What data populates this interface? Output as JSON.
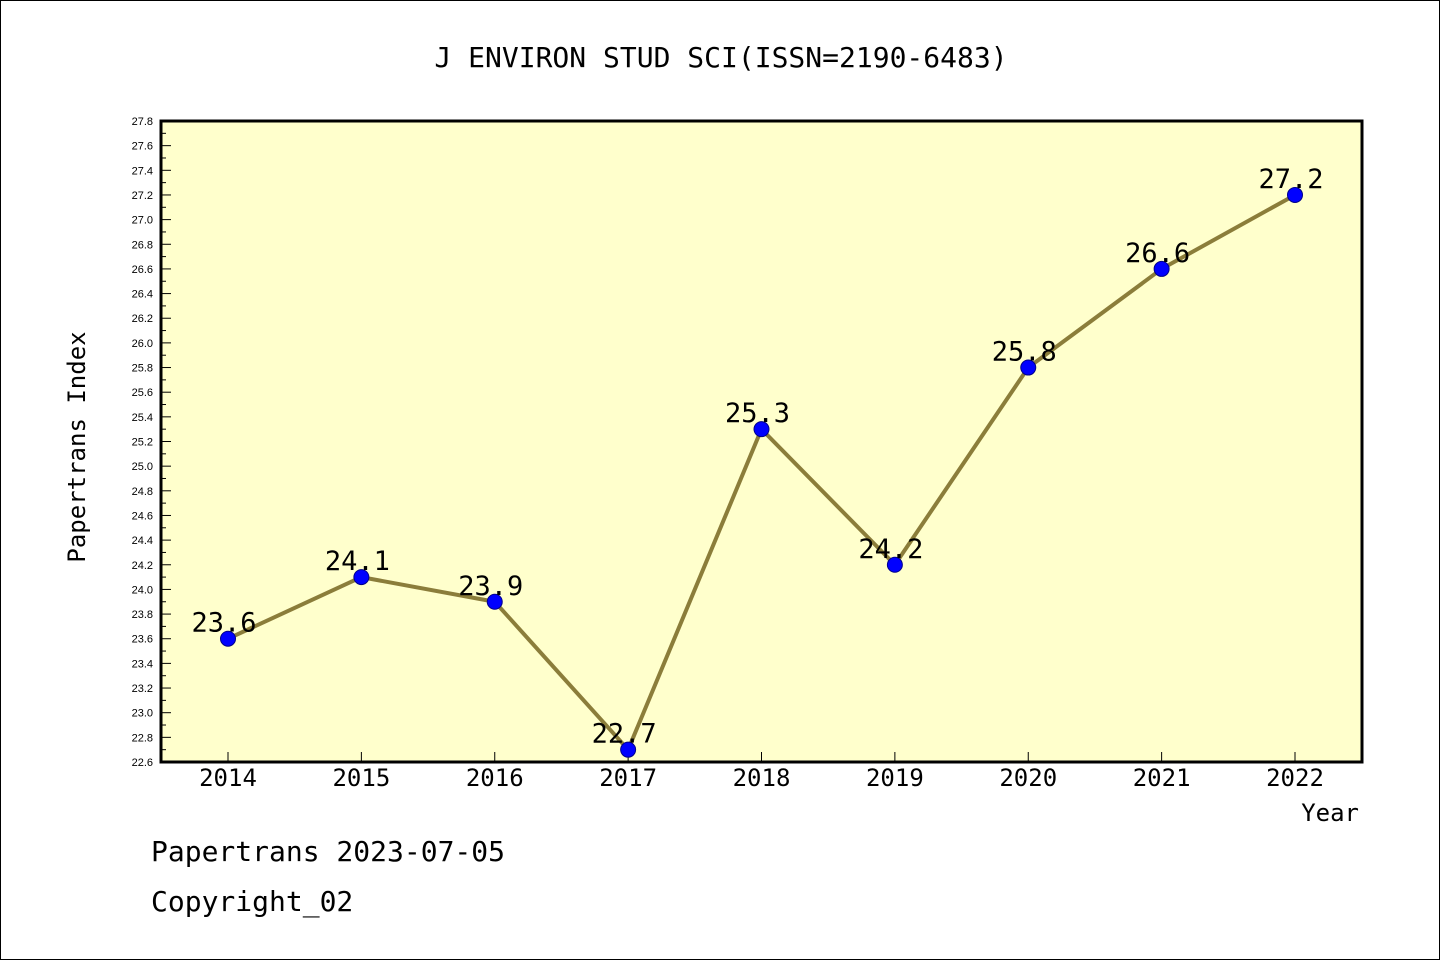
{
  "chart_data": {
    "type": "line",
    "title": "J ENVIRON STUD SCI(ISSN=2190-6483)",
    "xlabel": "Year",
    "ylabel": "Papertrans Index",
    "categories": [
      "2014",
      "2015",
      "2016",
      "2017",
      "2018",
      "2019",
      "2020",
      "2021",
      "2022"
    ],
    "series": [
      {
        "values": [
          23.6,
          24.1,
          23.9,
          22.7,
          25.3,
          24.2,
          25.8,
          26.6,
          27.2
        ]
      }
    ],
    "data_labels": [
      "23.6",
      "24.1",
      "23.9",
      "22.7",
      "25.3",
      "24.2",
      "25.8",
      "26.6",
      "27.2"
    ],
    "ylim": [
      22.6,
      27.8
    ],
    "y_ticks": [
      "22.6",
      "22.8",
      "23.0",
      "23.2",
      "23.4",
      "23.6",
      "23.8",
      "24.0",
      "24.2",
      "24.4",
      "24.6",
      "24.8",
      "25.0",
      "25.2",
      "25.4",
      "25.6",
      "25.8",
      "26.0",
      "26.2",
      "26.4",
      "26.6",
      "26.8",
      "27.0",
      "27.2",
      "27.4",
      "27.6",
      "27.8"
    ],
    "grid": false,
    "legend": "none",
    "colors": {
      "plot_background": "#ffffcc",
      "line": "#8b7d3a",
      "marker": "#0000ff"
    }
  },
  "footer": {
    "line1": "Papertrans 2023-07-05",
    "line2": "Copyright_02"
  }
}
